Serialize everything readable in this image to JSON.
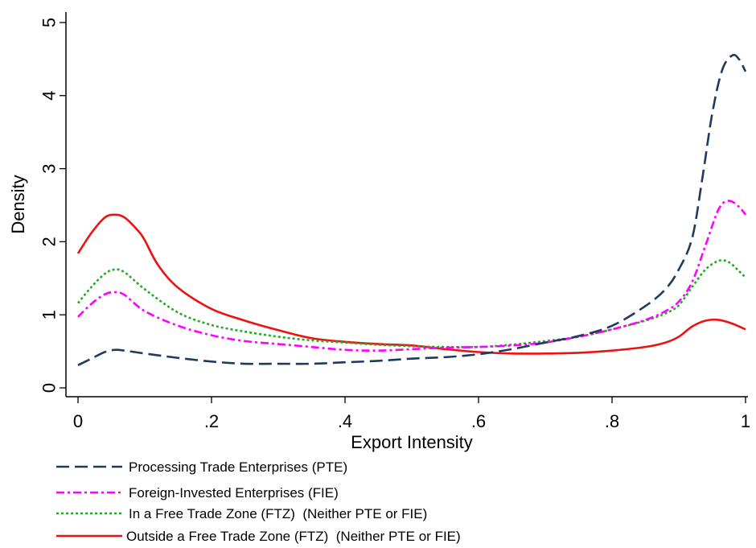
{
  "chart_data": {
    "type": "line",
    "title": "",
    "xlabel": "Export Intensity",
    "ylabel": "Density",
    "xlim": [
      0,
      1
    ],
    "ylim": [
      0,
      5
    ],
    "x_ticks": [
      {
        "value": 0,
        "label": "0"
      },
      {
        "value": 0.2,
        "label": ".2"
      },
      {
        "value": 0.4,
        "label": ".4"
      },
      {
        "value": 0.6,
        "label": ".6"
      },
      {
        "value": 0.8,
        "label": ".8"
      },
      {
        "value": 1,
        "label": "1"
      }
    ],
    "y_ticks": [
      {
        "value": 0,
        "label": "0"
      },
      {
        "value": 1,
        "label": "1"
      },
      {
        "value": 2,
        "label": "2"
      },
      {
        "value": 3,
        "label": "3"
      },
      {
        "value": 4,
        "label": "4"
      },
      {
        "value": 5,
        "label": "5"
      }
    ],
    "grid": false,
    "legend_position": "bottom",
    "series": [
      {
        "name": "Processing Trade Enterprises (PTE)",
        "color": "#1f3a5f",
        "dash": "long-dash",
        "points": [
          [
            0,
            0.31
          ],
          [
            0.02,
            0.4
          ],
          [
            0.04,
            0.49
          ],
          [
            0.055,
            0.52
          ],
          [
            0.07,
            0.51
          ],
          [
            0.1,
            0.47
          ],
          [
            0.15,
            0.41
          ],
          [
            0.2,
            0.36
          ],
          [
            0.25,
            0.33
          ],
          [
            0.3,
            0.33
          ],
          [
            0.35,
            0.33
          ],
          [
            0.4,
            0.35
          ],
          [
            0.45,
            0.37
          ],
          [
            0.5,
            0.4
          ],
          [
            0.55,
            0.42
          ],
          [
            0.6,
            0.46
          ],
          [
            0.65,
            0.53
          ],
          [
            0.7,
            0.62
          ],
          [
            0.75,
            0.71
          ],
          [
            0.8,
            0.85
          ],
          [
            0.85,
            1.12
          ],
          [
            0.88,
            1.35
          ],
          [
            0.9,
            1.62
          ],
          [
            0.92,
            2.05
          ],
          [
            0.935,
            2.85
          ],
          [
            0.95,
            3.75
          ],
          [
            0.965,
            4.35
          ],
          [
            0.98,
            4.55
          ],
          [
            0.99,
            4.5
          ],
          [
            1,
            4.33
          ]
        ]
      },
      {
        "name": "Foreign-Invested Enterprises (FIE)",
        "color": "#ff00ff",
        "dash": "dash-dot",
        "points": [
          [
            0,
            0.97
          ],
          [
            0.02,
            1.15
          ],
          [
            0.04,
            1.28
          ],
          [
            0.055,
            1.31
          ],
          [
            0.07,
            1.27
          ],
          [
            0.1,
            1.05
          ],
          [
            0.15,
            0.85
          ],
          [
            0.2,
            0.72
          ],
          [
            0.25,
            0.64
          ],
          [
            0.3,
            0.6
          ],
          [
            0.35,
            0.56
          ],
          [
            0.4,
            0.52
          ],
          [
            0.45,
            0.51
          ],
          [
            0.5,
            0.53
          ],
          [
            0.55,
            0.55
          ],
          [
            0.6,
            0.56
          ],
          [
            0.65,
            0.58
          ],
          [
            0.7,
            0.62
          ],
          [
            0.75,
            0.7
          ],
          [
            0.8,
            0.8
          ],
          [
            0.85,
            0.93
          ],
          [
            0.88,
            1.05
          ],
          [
            0.9,
            1.18
          ],
          [
            0.92,
            1.45
          ],
          [
            0.94,
            1.95
          ],
          [
            0.96,
            2.45
          ],
          [
            0.975,
            2.56
          ],
          [
            0.99,
            2.48
          ],
          [
            1,
            2.37
          ]
        ]
      },
      {
        "name": "In a Free Trade Zone (FTZ)  (Neither PTE or FIE)",
        "color": "#22aa22",
        "dash": "dotted",
        "points": [
          [
            0,
            1.16
          ],
          [
            0.02,
            1.38
          ],
          [
            0.04,
            1.56
          ],
          [
            0.055,
            1.62
          ],
          [
            0.07,
            1.58
          ],
          [
            0.1,
            1.35
          ],
          [
            0.15,
            1.03
          ],
          [
            0.2,
            0.86
          ],
          [
            0.25,
            0.77
          ],
          [
            0.3,
            0.7
          ],
          [
            0.35,
            0.65
          ],
          [
            0.4,
            0.62
          ],
          [
            0.45,
            0.59
          ],
          [
            0.5,
            0.57
          ],
          [
            0.55,
            0.56
          ],
          [
            0.6,
            0.56
          ],
          [
            0.65,
            0.59
          ],
          [
            0.7,
            0.64
          ],
          [
            0.75,
            0.7
          ],
          [
            0.8,
            0.8
          ],
          [
            0.85,
            0.92
          ],
          [
            0.88,
            1.02
          ],
          [
            0.9,
            1.13
          ],
          [
            0.92,
            1.38
          ],
          [
            0.94,
            1.62
          ],
          [
            0.96,
            1.74
          ],
          [
            0.975,
            1.72
          ],
          [
            0.99,
            1.6
          ],
          [
            1,
            1.51
          ]
        ]
      },
      {
        "name": "Outside a Free Trade Zone (FTZ)  (Neither PTE or FIE)",
        "color": "#ee1111",
        "dash": "solid",
        "points": [
          [
            0,
            1.84
          ],
          [
            0.02,
            2.12
          ],
          [
            0.04,
            2.33
          ],
          [
            0.055,
            2.37
          ],
          [
            0.07,
            2.33
          ],
          [
            0.09,
            2.15
          ],
          [
            0.1,
            2.02
          ],
          [
            0.12,
            1.68
          ],
          [
            0.15,
            1.37
          ],
          [
            0.2,
            1.08
          ],
          [
            0.25,
            0.92
          ],
          [
            0.3,
            0.79
          ],
          [
            0.35,
            0.68
          ],
          [
            0.4,
            0.63
          ],
          [
            0.45,
            0.6
          ],
          [
            0.5,
            0.58
          ],
          [
            0.55,
            0.53
          ],
          [
            0.6,
            0.49
          ],
          [
            0.65,
            0.47
          ],
          [
            0.7,
            0.47
          ],
          [
            0.75,
            0.48
          ],
          [
            0.8,
            0.51
          ],
          [
            0.85,
            0.56
          ],
          [
            0.88,
            0.62
          ],
          [
            0.9,
            0.7
          ],
          [
            0.92,
            0.84
          ],
          [
            0.94,
            0.92
          ],
          [
            0.96,
            0.93
          ],
          [
            0.98,
            0.88
          ],
          [
            1,
            0.8
          ]
        ]
      }
    ]
  }
}
